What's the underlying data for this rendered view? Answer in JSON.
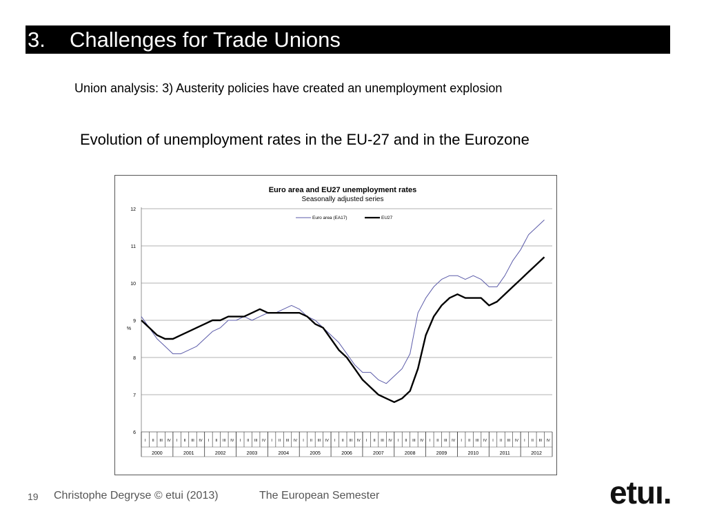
{
  "slide": {
    "number": "3.",
    "title": "Challenges for Trade Unions",
    "subtitle": "Union analysis: 3) Austerity policies have created an unemployment explosion",
    "heading": "Evolution of unemployment rates in the EU-27 and in the Eurozone"
  },
  "footer": {
    "page": "19",
    "author": "Christophe Degryse © etui (2013)",
    "topic": "The European Semester",
    "logo_text": "etuı."
  },
  "chart_data": {
    "type": "line",
    "title": "Euro area and EU27 unemployment rates",
    "subtitle": "Seasonally adjusted series",
    "ylabel": "%",
    "ylim": [
      6,
      12
    ],
    "yticks": [
      "6",
      "7",
      "8",
      "9",
      "10",
      "11",
      "12"
    ],
    "grid": true,
    "legend_position": "top-center",
    "years": [
      "2000",
      "2001",
      "2002",
      "2003",
      "2004",
      "2005",
      "2006",
      "2007",
      "2008",
      "2009",
      "2010",
      "2011",
      "2012"
    ],
    "quarters": [
      "I",
      "II",
      "III",
      "IV"
    ],
    "series": [
      {
        "name": "Euro area (EA17)",
        "color": "#5a5aa8",
        "x": [
          2000.0,
          2000.25,
          2000.5,
          2000.75,
          2001.0,
          2001.25,
          2001.5,
          2001.75,
          2002.0,
          2002.25,
          2002.5,
          2002.75,
          2003.0,
          2003.25,
          2003.5,
          2003.75,
          2004.0,
          2004.25,
          2004.5,
          2004.75,
          2005.0,
          2005.25,
          2005.5,
          2005.75,
          2006.0,
          2006.25,
          2006.5,
          2006.75,
          2007.0,
          2007.25,
          2007.5,
          2007.75,
          2008.0,
          2008.25,
          2008.5,
          2008.75,
          2009.0,
          2009.25,
          2009.5,
          2009.75,
          2010.0,
          2010.25,
          2010.5,
          2010.75,
          2011.0,
          2011.25,
          2011.5,
          2011.75,
          2012.0,
          2012.25,
          2012.5,
          2012.75
        ],
        "y": [
          9.1,
          8.8,
          8.5,
          8.3,
          8.1,
          8.1,
          8.2,
          8.3,
          8.5,
          8.7,
          8.8,
          9.0,
          9.0,
          9.1,
          9.0,
          9.1,
          9.2,
          9.2,
          9.3,
          9.4,
          9.3,
          9.1,
          9.0,
          8.8,
          8.6,
          8.4,
          8.1,
          7.8,
          7.6,
          7.6,
          7.4,
          7.3,
          7.5,
          7.7,
          8.1,
          9.2,
          9.6,
          9.9,
          10.1,
          10.2,
          10.2,
          10.1,
          10.2,
          10.1,
          9.9,
          9.9,
          10.2,
          10.6,
          10.9,
          11.3,
          11.5,
          11.7
        ]
      },
      {
        "name": "EU27",
        "color": "#000000",
        "x": [
          2000.0,
          2000.25,
          2000.5,
          2000.75,
          2001.0,
          2001.25,
          2001.5,
          2001.75,
          2002.0,
          2002.25,
          2002.5,
          2002.75,
          2003.0,
          2003.25,
          2003.5,
          2003.75,
          2004.0,
          2004.25,
          2004.5,
          2004.75,
          2005.0,
          2005.25,
          2005.5,
          2005.75,
          2006.0,
          2006.25,
          2006.5,
          2006.75,
          2007.0,
          2007.25,
          2007.5,
          2007.75,
          2008.0,
          2008.25,
          2008.5,
          2008.75,
          2009.0,
          2009.25,
          2009.5,
          2009.75,
          2010.0,
          2010.25,
          2010.5,
          2010.75,
          2011.0,
          2011.25,
          2011.5,
          2011.75,
          2012.0,
          2012.25,
          2012.5,
          2012.75
        ],
        "y": [
          9.0,
          8.8,
          8.6,
          8.5,
          8.5,
          8.6,
          8.7,
          8.8,
          8.9,
          9.0,
          9.0,
          9.1,
          9.1,
          9.1,
          9.2,
          9.3,
          9.2,
          9.2,
          9.2,
          9.2,
          9.2,
          9.1,
          8.9,
          8.8,
          8.5,
          8.2,
          8.0,
          7.7,
          7.4,
          7.2,
          7.0,
          6.9,
          6.8,
          6.9,
          7.1,
          7.7,
          8.6,
          9.1,
          9.4,
          9.6,
          9.7,
          9.6,
          9.6,
          9.6,
          9.4,
          9.5,
          9.7,
          9.9,
          10.1,
          10.3,
          10.5,
          10.7
        ]
      }
    ]
  }
}
